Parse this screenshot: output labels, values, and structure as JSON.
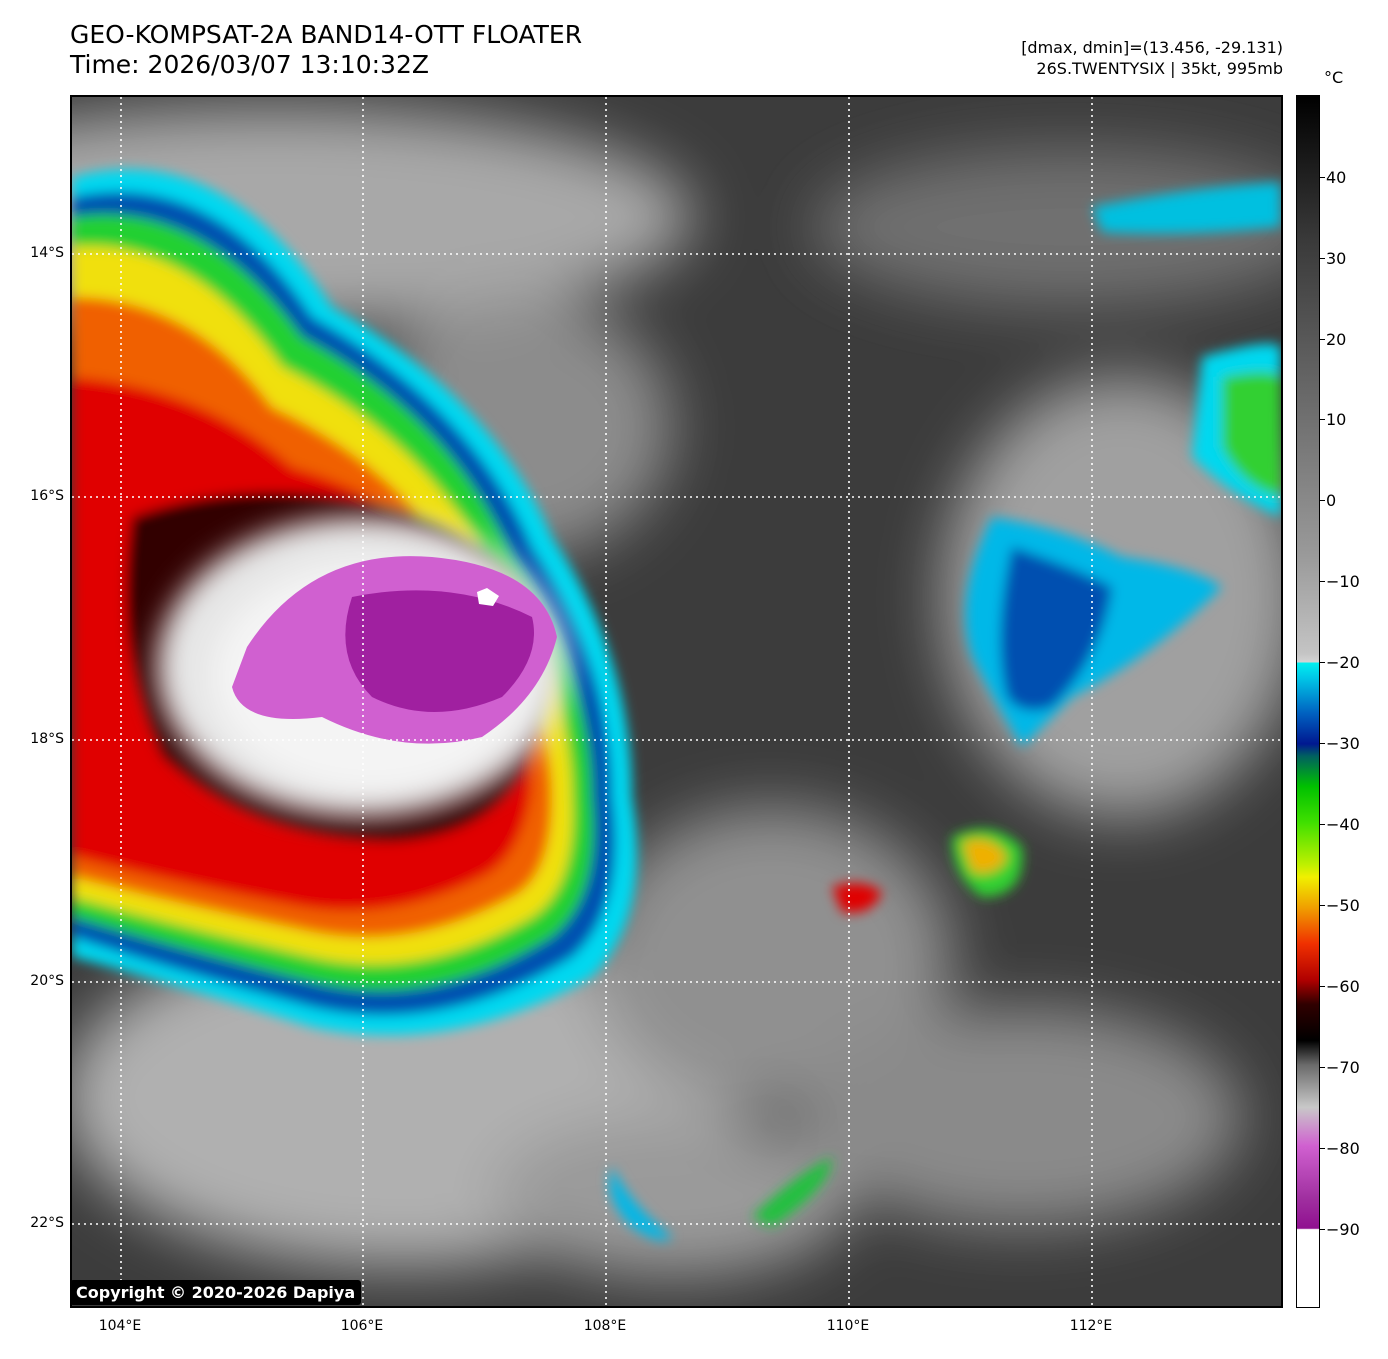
{
  "title": {
    "line1": "GEO-KOMPSAT-2A BAND14-OTT FLOATER",
    "line2": "Time: 2026/03/07 13:10:32Z"
  },
  "meta": {
    "range": "[dmax, dmin]=(13.456, -29.131)",
    "storm": "26S.TWENTYSIX | 35kt, 995mb"
  },
  "map": {
    "lat_labels": [
      "14°S",
      "16°S",
      "18°S",
      "20°S",
      "22°S"
    ],
    "lon_labels": [
      "104°E",
      "106°E",
      "108°E",
      "110°E",
      "112°E"
    ]
  },
  "colorbar": {
    "unit": "°C",
    "ticks": [
      "40",
      "30",
      "20",
      "10",
      "0",
      "−10",
      "−20",
      "−30",
      "−40",
      "−50",
      "−60",
      "−70",
      "−80",
      "−90"
    ]
  },
  "copyright": "Copyright © 2020-2026 Dapiya",
  "colors": {
    "cold_top": "#b040b0",
    "red": "#e00000",
    "yellow": "#f0e000",
    "green": "#20d020",
    "cyan": "#00e0f0",
    "blue": "#0040a0"
  }
}
